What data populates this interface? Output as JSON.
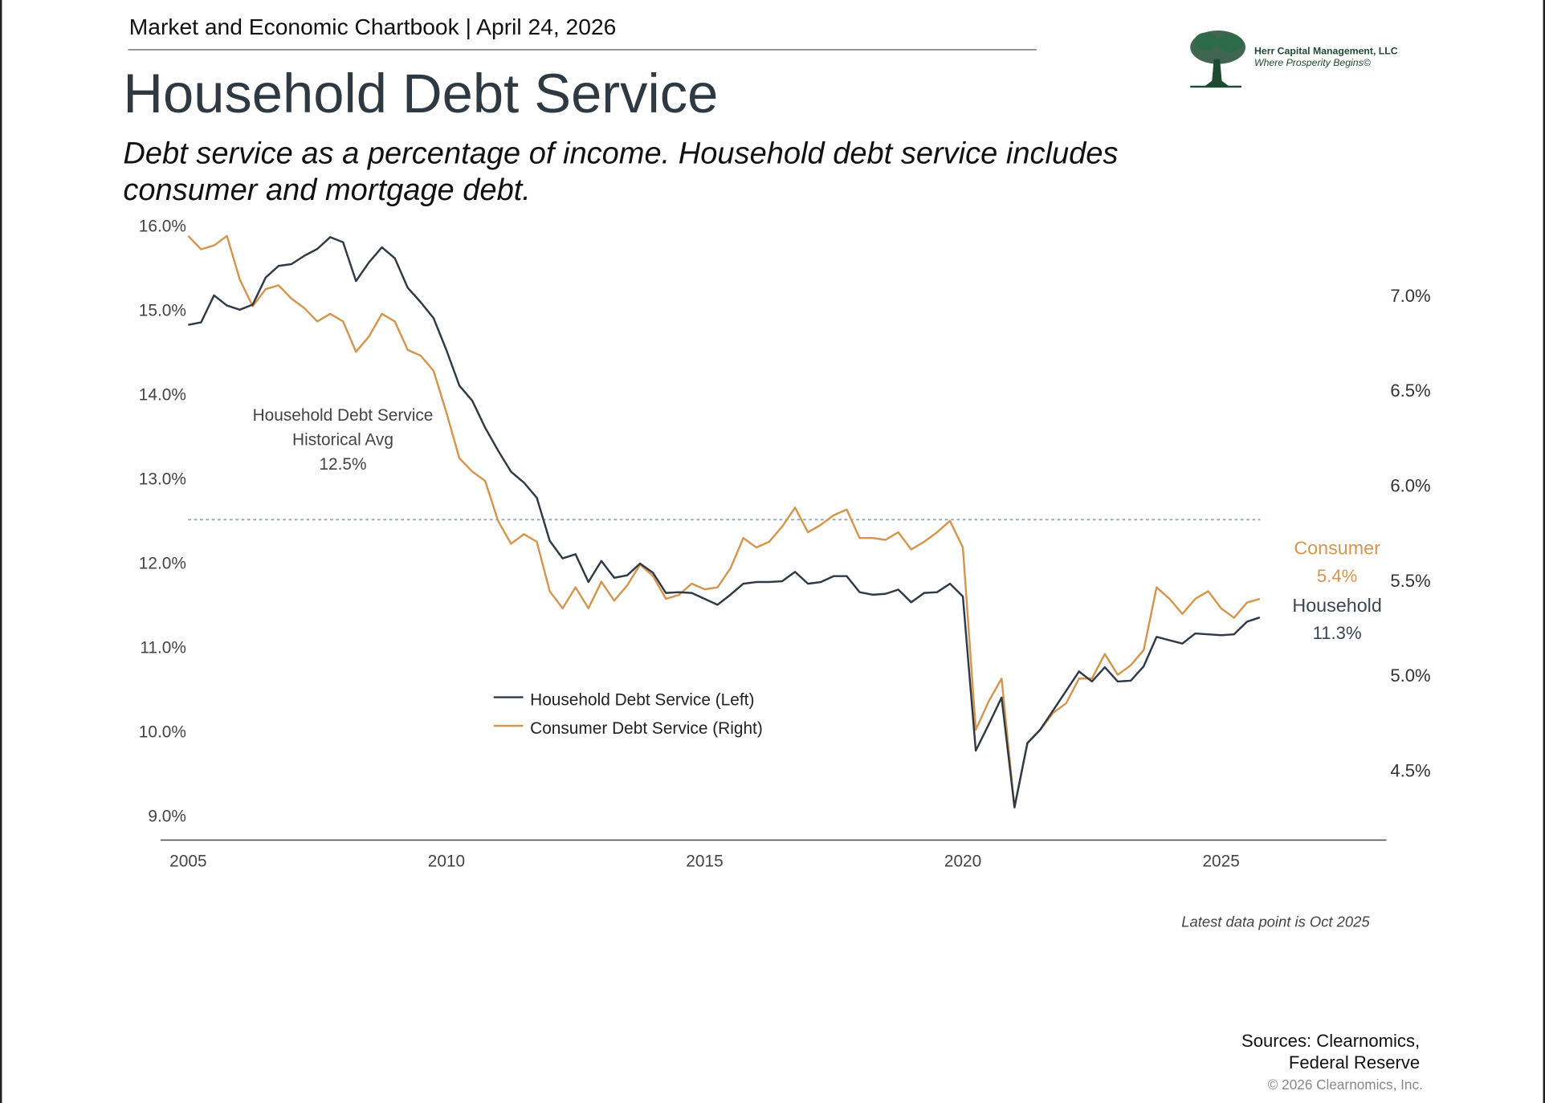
{
  "header": "Market and Economic Chartbook | April 24, 2026",
  "title": "Household Debt Service",
  "subtitle": "Debt service as a percentage of income. Household debt service includes consumer and mortgage debt.",
  "logo": {
    "name": "Herr Capital Management, LLC",
    "tagline": "Where Prosperity Begins©",
    "color": "#1f4a32"
  },
  "footer": {
    "latest": "Latest data point is Oct 2025",
    "sources_line1": "Sources: Clearnomics,",
    "sources_line2": "Federal Reserve",
    "copyright": "© 2026 Clearnomics, Inc."
  },
  "chart_data": {
    "type": "line",
    "title": "Household Debt Service",
    "left_axis": {
      "ticks": [
        "16.0%",
        "15.0%",
        "14.0%",
        "13.0%",
        "12.0%",
        "11.0%",
        "10.0%",
        "9.0%"
      ],
      "tick_values": [
        16,
        15,
        14,
        13,
        12,
        11,
        10,
        9
      ],
      "ylim": [
        8.7,
        16.0
      ]
    },
    "right_axis": {
      "ticks": [
        "7.0%",
        "6.5%",
        "6.0%",
        "5.5%",
        "5.0%",
        "4.5%"
      ],
      "tick_values": [
        7.0,
        6.5,
        6.0,
        5.5,
        5.0,
        4.5
      ],
      "ylim": [
        4.13,
        7.37
      ]
    },
    "x_axis": {
      "ticks": [
        "2005",
        "2010",
        "2015",
        "2020",
        "2025"
      ],
      "tick_values": [
        2005,
        2010,
        2015,
        2020,
        2025
      ],
      "xlim": [
        2005,
        2028.2
      ]
    },
    "grid": false,
    "legend_placement": "center-left",
    "reference_line": {
      "label_line1": "Household Debt Service",
      "label_line2": "Historical Avg",
      "label_line3": "12.5%",
      "value": 12.5,
      "axis": "left"
    },
    "end_labels": {
      "consumer_name": "Consumer",
      "consumer_value": "5.4%",
      "household_name": "Household",
      "household_value": "11.3%"
    },
    "x": [
      2005,
      2005.25,
      2005.5,
      2005.75,
      2006,
      2006.25,
      2006.5,
      2006.75,
      2007,
      2007.25,
      2007.5,
      2007.75,
      2008,
      2008.25,
      2008.5,
      2008.75,
      2009,
      2009.25,
      2009.5,
      2009.75,
      2010,
      2010.25,
      2010.5,
      2010.75,
      2011,
      2011.25,
      2011.5,
      2011.75,
      2012,
      2012.25,
      2012.5,
      2012.75,
      2013,
      2013.25,
      2013.5,
      2013.75,
      2014,
      2014.25,
      2014.5,
      2014.75,
      2015,
      2015.25,
      2015.5,
      2015.75,
      2016,
      2016.25,
      2016.5,
      2016.75,
      2017,
      2017.25,
      2017.5,
      2017.75,
      2018,
      2018.25,
      2018.5,
      2018.75,
      2019,
      2019.25,
      2019.5,
      2019.75,
      2020,
      2020.25,
      2020.5,
      2020.75,
      2021,
      2021.25,
      2021.5,
      2021.75,
      2022,
      2022.25,
      2022.5,
      2022.75,
      2023,
      2023.25,
      2023.5,
      2023.75,
      2024,
      2024.25,
      2024.5,
      2024.75,
      2025,
      2025.25,
      2025.5,
      2025.75
    ],
    "series": [
      {
        "name": "Household Debt Service (Left)",
        "axis": "left",
        "color": "#2e3a46",
        "values": [
          14.81,
          14.84,
          15.16,
          15.04,
          14.99,
          15.05,
          15.37,
          15.51,
          15.53,
          15.63,
          15.71,
          15.85,
          15.79,
          15.33,
          15.55,
          15.73,
          15.6,
          15.25,
          15.08,
          14.89,
          14.51,
          14.09,
          13.91,
          13.59,
          13.32,
          13.07,
          12.94,
          12.76,
          12.25,
          12.04,
          12.09,
          11.76,
          12.01,
          11.81,
          11.84,
          11.98,
          11.87,
          11.63,
          11.64,
          11.63,
          11.56,
          11.49,
          11.61,
          11.74,
          11.76,
          11.76,
          11.77,
          11.88,
          11.74,
          11.76,
          11.83,
          11.83,
          11.64,
          11.61,
          11.62,
          11.67,
          11.52,
          11.63,
          11.64,
          11.74,
          11.59,
          9.76,
          10.07,
          10.39,
          9.09,
          9.85,
          10.01,
          10.24,
          10.47,
          10.7,
          10.58,
          10.75,
          10.58,
          10.59,
          10.76,
          11.11,
          11.07,
          11.03,
          11.15,
          11.14,
          11.13,
          11.14,
          11.29,
          11.34
        ]
      },
      {
        "name": "Consumer Debt Service (Right)",
        "axis": "right",
        "color": "#d4964f",
        "values": [
          7.31,
          7.24,
          7.26,
          7.31,
          7.08,
          6.94,
          7.03,
          7.05,
          6.98,
          6.93,
          6.86,
          6.9,
          6.86,
          6.7,
          6.78,
          6.9,
          6.86,
          6.71,
          6.68,
          6.6,
          6.38,
          6.14,
          6.07,
          6.02,
          5.81,
          5.69,
          5.74,
          5.7,
          5.44,
          5.35,
          5.46,
          5.35,
          5.49,
          5.39,
          5.47,
          5.58,
          5.52,
          5.4,
          5.42,
          5.48,
          5.45,
          5.46,
          5.56,
          5.72,
          5.67,
          5.7,
          5.78,
          5.88,
          5.75,
          5.79,
          5.84,
          5.87,
          5.72,
          5.72,
          5.71,
          5.75,
          5.66,
          5.7,
          5.75,
          5.81,
          5.67,
          4.71,
          4.86,
          4.98,
          4.3,
          4.64,
          4.71,
          4.8,
          4.85,
          4.98,
          4.98,
          5.11,
          5.0,
          5.05,
          5.13,
          5.46,
          5.4,
          5.32,
          5.4,
          5.44,
          5.35,
          5.3,
          5.38,
          5.4
        ]
      }
    ]
  }
}
